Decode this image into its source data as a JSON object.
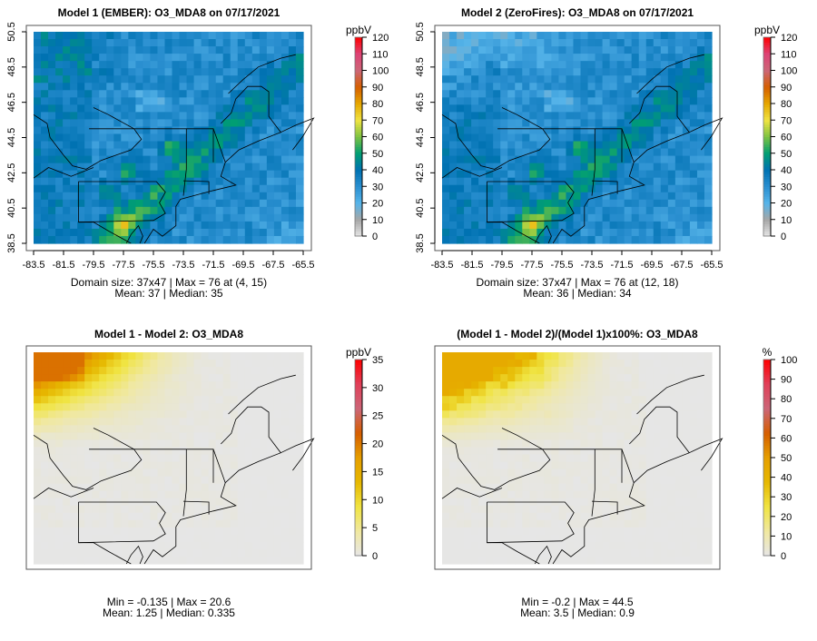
{
  "panels": [
    {
      "id": "model1",
      "title": "Model 1 (EMBER): O3_MDA8 on 07/17/2021",
      "unit": "ppbV",
      "stats_line1": "Domain size: 37x47 | Max = 76 at (4, 15)",
      "stats_line2": "Mean: 37 |  Median: 35",
      "colorbar_ticks": [
        "0",
        "10",
        "20",
        "30",
        "40",
        "50",
        "60",
        "70",
        "80",
        "90",
        "100",
        "110",
        "120"
      ],
      "colorbar_range": [
        0,
        120
      ],
      "field": "model1",
      "show_axes": true
    },
    {
      "id": "model2",
      "title": "Model 2 (ZeroFires): O3_MDA8 on 07/17/2021",
      "unit": "ppbV",
      "stats_line1": "Domain size: 37x47 | Max = 76 at (12, 18)",
      "stats_line2": "Mean: 36 |  Median: 34",
      "colorbar_ticks": [
        "0",
        "10",
        "20",
        "30",
        "40",
        "50",
        "60",
        "70",
        "80",
        "90",
        "100",
        "110",
        "120"
      ],
      "colorbar_range": [
        0,
        120
      ],
      "field": "model2",
      "show_axes": true
    },
    {
      "id": "diff",
      "title": "Model 1 - Model 2: O3_MDA8",
      "unit": "ppbV",
      "stats_line1": "Min = -0.135 | Max = 20.6",
      "stats_line2": "Mean: 1.25 |  Median: 0.335",
      "colorbar_ticks": [
        "0",
        "5",
        "10",
        "15",
        "20",
        "25",
        "30",
        "35"
      ],
      "colorbar_range": [
        0,
        35
      ],
      "field": "diff",
      "show_axes": false
    },
    {
      "id": "pctdiff",
      "title": "(Model 1 - Model 2)/(Model 1)x100%: O3_MDA8",
      "unit": "%",
      "stats_line1": "Min = -0.2 | Max = 44.5",
      "stats_line2": "Mean: 3.5 |  Median: 0.9",
      "colorbar_ticks": [
        "0",
        "10",
        "20",
        "30",
        "40",
        "50",
        "60",
        "70",
        "80",
        "90",
        "100"
      ],
      "colorbar_range": [
        0,
        100
      ],
      "field": "pct",
      "show_axes": false
    }
  ],
  "axes": {
    "x_ticks": [
      "-83.5",
      "-81.5",
      "-79.5",
      "-77.5",
      "-75.5",
      "-73.5",
      "-71.5",
      "-69.5",
      "-67.5",
      "-65.5"
    ],
    "y_ticks": [
      "38.5",
      "40.5",
      "42.5",
      "44.5",
      "46.5",
      "48.5",
      "50.5"
    ],
    "lon_range": [
      -83.5,
      -65.5
    ],
    "lat_range": [
      38.5,
      50.5
    ]
  },
  "colors": {
    "abs_scale": [
      "#e6e6e6",
      "#a6a6a6",
      "#56b4e9",
      "#2a8fd0",
      "#0072b2",
      "#009e73",
      "#7cc242",
      "#f0e442",
      "#e6a700",
      "#d55e00",
      "#cc6677",
      "#dd4477",
      "#ff0000"
    ],
    "diff_scale": [
      "#e6e6e6",
      "#f0e8a0",
      "#f0e442",
      "#e6b800",
      "#e69f00",
      "#d55e00",
      "#cc6677",
      "#e0405a",
      "#ff0000"
    ]
  }
}
